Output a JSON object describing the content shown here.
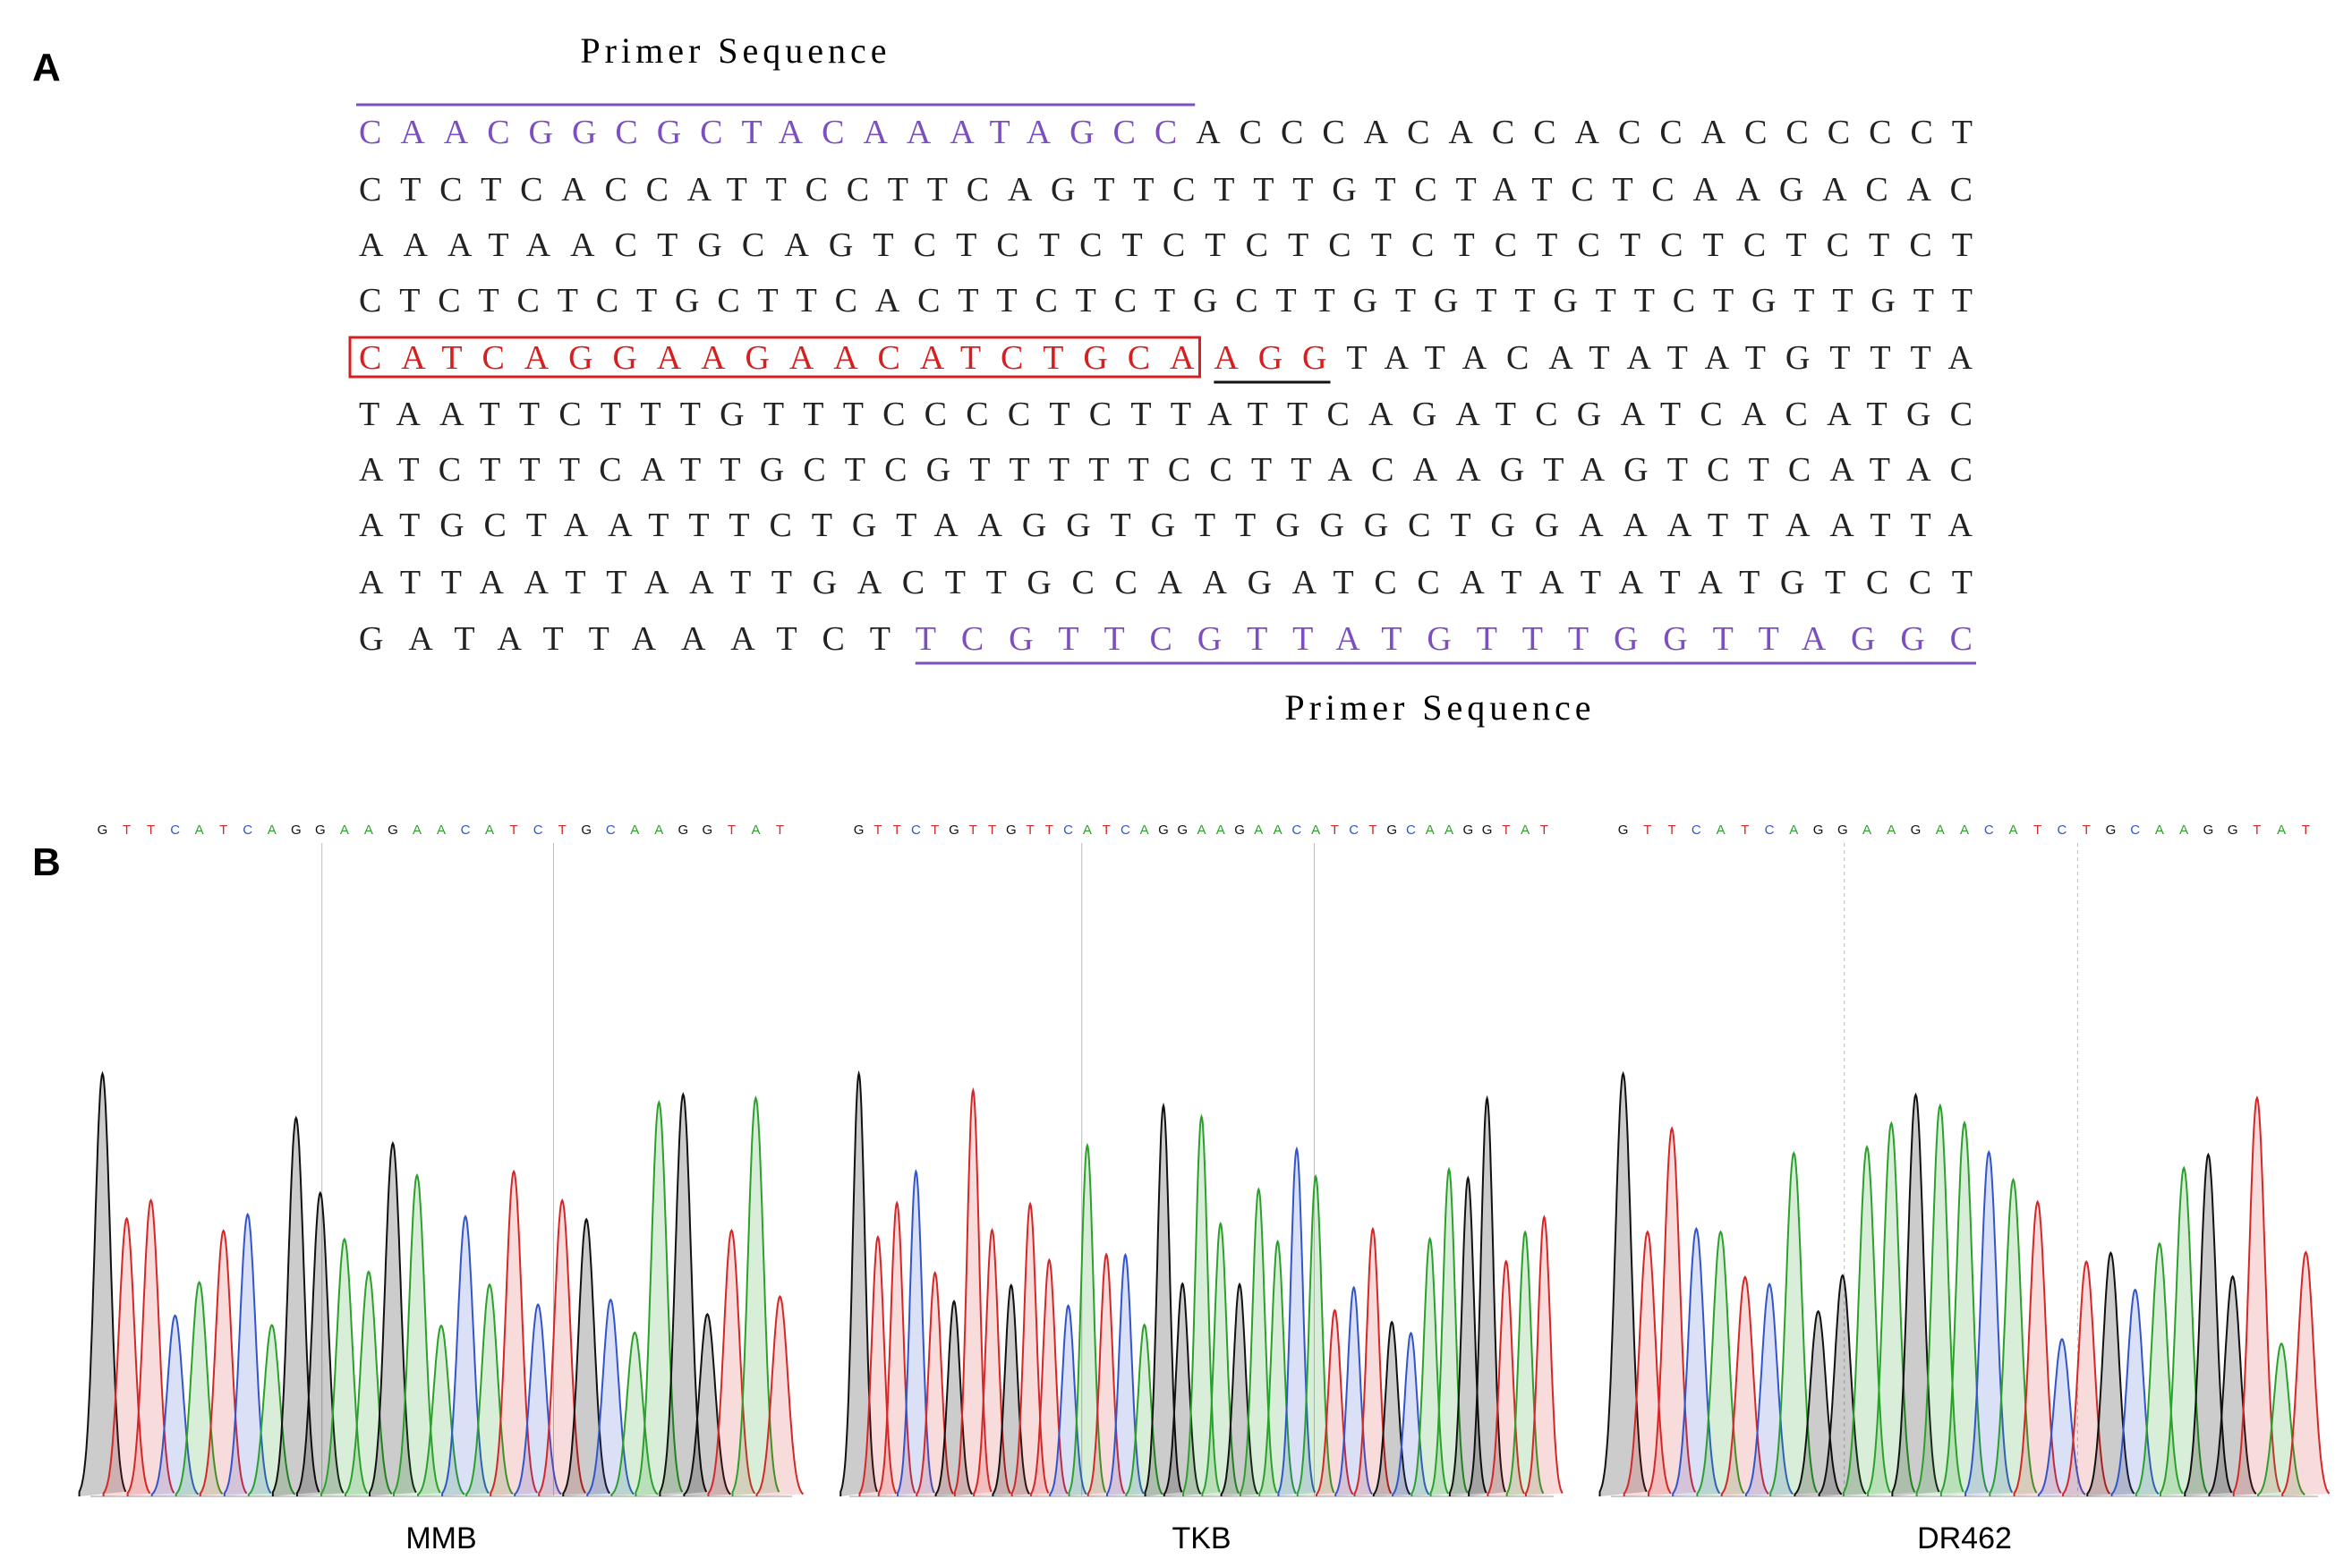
{
  "panel_a": {
    "label": "A",
    "primer_top": "Primer Sequence",
    "primer_bottom": "Primer Sequence",
    "lines": [
      [
        {
          "text": "CAACGGCGCTACAAATAGCC",
          "color": "#7b4fc0",
          "decoration": "overline"
        },
        {
          "text": "ACCCACACCACCACCCCCT",
          "color": "#222222"
        }
      ],
      [
        {
          "text": "CTCTCACCATTCCTTCAGTTCTTTGTCTATCTCAAGACAC",
          "color": "#222222"
        }
      ],
      [
        {
          "text": "AAATAACTGCAGTCTCTCTCTCTCTCTCTCTCTCTCTCT",
          "color": "#222222"
        }
      ],
      [
        {
          "text": "CTCTCTCTGCTTCACTTCTCTGCTTGTGTTGTTCTGTTGTT",
          "color": "#222222"
        }
      ],
      [
        {
          "text": "CATCAGGAAGAACATCTGCA",
          "color": "#d42020",
          "decoration": "box"
        },
        {
          "text": "AGG",
          "color": "#d42020",
          "decoration": "underline"
        },
        {
          "text": "TATACATATATGTTTA",
          "color": "#222222"
        }
      ],
      [
        {
          "text": "TAATTCTTTGTTTCCCCTCTTATTCAGATCGATCACATGC",
          "color": "#222222"
        }
      ],
      [
        {
          "text": "ATCTTTCATTGCTCGTTTTTCCTTACAAGTAGTCTCATAC",
          "color": "#222222"
        }
      ],
      [
        {
          "text": "ATGCTAATTTCTGTAAGGTGTTGGGCTGGAAATTAATTA",
          "color": "#222222"
        }
      ],
      [
        {
          "text": "ATTAATTAATTGACTTGCCAAGATCCATATATATGTCCT",
          "color": "#222222"
        }
      ],
      [
        {
          "text": "GATATTAAATCT",
          "color": "#222222"
        },
        {
          "text": "TCGTTCGTTATGTTTGGTTAGGC",
          "color": "#7b4fc0",
          "decoration": "underline"
        }
      ]
    ]
  },
  "panel_b": {
    "label": "B",
    "traces": [
      {
        "name": "MMB",
        "bases": [
          "G",
          "T",
          "T",
          "C",
          "A",
          "T",
          "C",
          "A",
          "G",
          "G",
          "A",
          "A",
          "G",
          "A",
          "A",
          "C",
          "A",
          "T",
          "C",
          "T",
          "G",
          "C",
          "A",
          "A",
          "G",
          "G",
          "T",
          "A",
          "T"
        ]
      },
      {
        "name": "TKB",
        "bases": [
          "G",
          "T",
          "T",
          "C",
          "T",
          "G",
          "T",
          "T",
          "G",
          "T",
          "T",
          "C",
          "A",
          "T",
          "C",
          "A",
          "G",
          "G",
          "A",
          "A",
          "G",
          "A",
          "A",
          "C",
          "A",
          "T",
          "C",
          "T",
          "G",
          "C",
          "A",
          "A",
          "G",
          "G",
          "T",
          "A",
          "T"
        ]
      },
      {
        "name": "DR462",
        "bases": [
          "G",
          "T",
          "T",
          "C",
          "A",
          "T",
          "C",
          "A",
          "G",
          "G",
          "A",
          "A",
          "G",
          "A",
          "A",
          "C",
          "A",
          "T",
          "C",
          "T",
          "G",
          "C",
          "A",
          "A",
          "G",
          "G",
          "T",
          "A",
          "T"
        ]
      }
    ]
  }
}
